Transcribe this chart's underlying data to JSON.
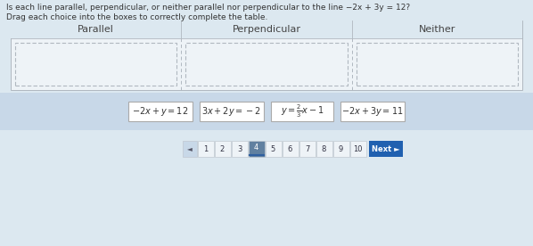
{
  "title_line1": "Is each line parallel, perpendicular, or neither parallel nor perpendicular to the line −2x + 3y = 12?",
  "title_line2": "Drag each choice into the boxes to correctly complete the table.",
  "col_headers": [
    "Parallel",
    "Perpendicular",
    "Neither"
  ],
  "bg_color": "#dce8f0",
  "table_bg": "#eef3f7",
  "table_header_bg": "#dce8f0",
  "choice_area_bg": "#c8d8e8",
  "choice_box_color": "#ffffff",
  "choice_border_color": "#aaaaaa",
  "table_border_color": "#b0b8c0",
  "table_dashed_color": "#b0b8c0",
  "text_color_dark": "#333333",
  "text_color_header": "#444444",
  "nav_back_bg": "#c8d8e8",
  "nav_num_bg": "#eef3f7",
  "nav_num_border": "#c0c8d0",
  "nav_active_bg": "#6080a0",
  "nav_active_underline": "#3060a0",
  "next_btn_color": "#2060b0",
  "nav_numbers": [
    "1",
    "2",
    "3",
    "4",
    "5",
    "6",
    "7",
    "8",
    "9",
    "10"
  ],
  "nav_active": 3,
  "choices_display": [
    "$-2x+y=12$",
    "$3x+2y=-2$",
    "$y=\\frac{2}{3}x-1$",
    "$-2x+3y=11$"
  ]
}
